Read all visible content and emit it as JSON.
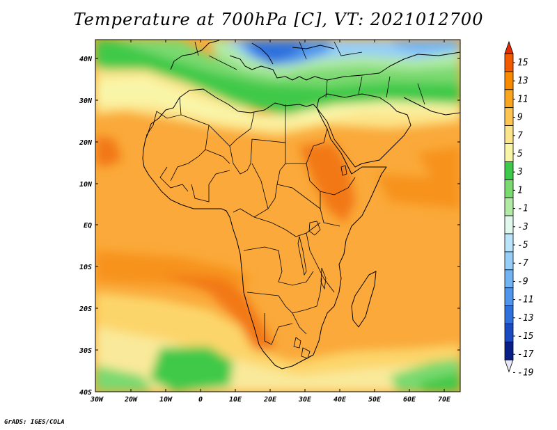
{
  "title": "Temperature at 700hPa [C], VT: 2021012700",
  "credit": "GrADS: IGES/COLA",
  "map": {
    "lat_labels": [
      "40N",
      "30N",
      "20N",
      "10N",
      "EQ",
      "10S",
      "20S",
      "30S",
      "40S"
    ],
    "lon_labels": [
      "30W",
      "20W",
      "10W",
      "0",
      "10E",
      "20E",
      "30E",
      "40E",
      "50E",
      "60E",
      "70E"
    ]
  },
  "colorbar": {
    "labels": [
      "15",
      "13",
      "11",
      "9",
      "7",
      "5",
      "3",
      "1",
      "-1",
      "-3",
      "-5",
      "-7",
      "-9",
      "-11",
      "-13",
      "-15",
      "-17",
      "-19"
    ],
    "colors": [
      "#e62a00",
      "#f25a00",
      "#f78a00",
      "#faa51f",
      "#fcc552",
      "#fce48a",
      "#f9f5a8",
      "#3fc94a",
      "#7ad96f",
      "#b0eaa4",
      "#e0f8ee",
      "#b9e4fa",
      "#96cef7",
      "#72b3f2",
      "#4f95eb",
      "#2f70dc",
      "#1a4bc0",
      "#0a1f86",
      "#e7e7f6"
    ]
  }
}
